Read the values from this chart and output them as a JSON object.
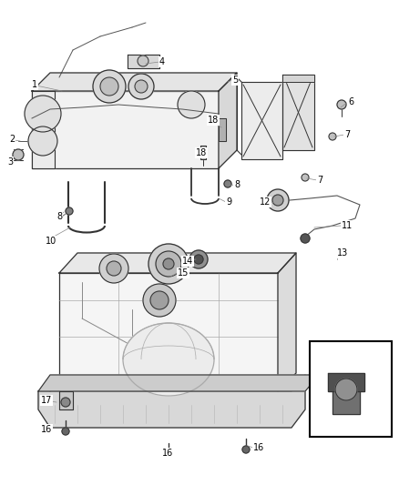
{
  "bg_color": "#ffffff",
  "line_color": "#333333",
  "text_color": "#000000",
  "fig_width": 4.38,
  "fig_height": 5.33,
  "dpi": 100
}
